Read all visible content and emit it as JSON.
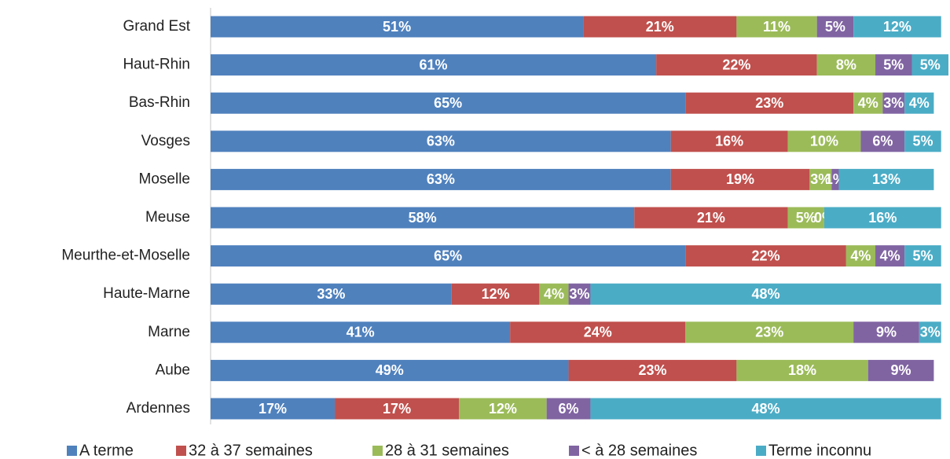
{
  "chart_data": {
    "type": "stacked_barh",
    "categories": [
      "Grand Est",
      "Haut-Rhin",
      "Bas-Rhin",
      "Vosges",
      "Moselle",
      "Meuse",
      "Meurthe-et-Moselle",
      "Haute-Marne",
      "Marne",
      "Aube",
      "Ardennes"
    ],
    "series": [
      {
        "name": "A terme",
        "color": "#4f81bd",
        "values": [
          51,
          61,
          65,
          63,
          63,
          58,
          65,
          33,
          41,
          49,
          17
        ],
        "value_labels": [
          "51%",
          "61%",
          "65%",
          "63%",
          "63%",
          "58%",
          "65%",
          "33%",
          "41%",
          "49%",
          "17%"
        ]
      },
      {
        "name": "32 à 37 semaines",
        "color": "#c0504d",
        "values": [
          21,
          22,
          23,
          16,
          19,
          21,
          22,
          12,
          24,
          23,
          17
        ],
        "value_labels": [
          "21%",
          "22%",
          "23%",
          "16%",
          "19%",
          "21%",
          "22%",
          "12%",
          "24%",
          "23%",
          "17%"
        ]
      },
      {
        "name": "28 à 31 semaines",
        "color": "#9bbb59",
        "values": [
          11,
          8,
          4,
          10,
          3,
          5,
          4,
          4,
          23,
          18,
          12
        ],
        "value_labels": [
          "11%",
          "8%",
          "4%",
          "10%",
          "3%",
          "5%",
          "4%",
          "4%",
          "23%",
          "18%",
          "12%"
        ]
      },
      {
        "name": "< à 28 semaines",
        "color": "#8064a2",
        "values": [
          5,
          5,
          3,
          6,
          1,
          0,
          4,
          3,
          9,
          9,
          6
        ],
        "value_labels": [
          "5%",
          "5%",
          "3%",
          "6%",
          "1%",
          "0%",
          "4%",
          "3%",
          "9%",
          "9%",
          "6%"
        ]
      },
      {
        "name": "Terme inconnu",
        "color": "#4bacc6",
        "values": [
          12,
          5,
          4,
          5,
          13,
          16,
          5,
          48,
          3,
          null,
          48
        ],
        "value_labels": [
          "12%",
          "5%",
          "4%",
          "5%",
          "13%",
          "16%",
          "5%",
          "48%",
          "3%",
          null,
          "48%"
        ]
      }
    ],
    "legend": "bottom"
  }
}
